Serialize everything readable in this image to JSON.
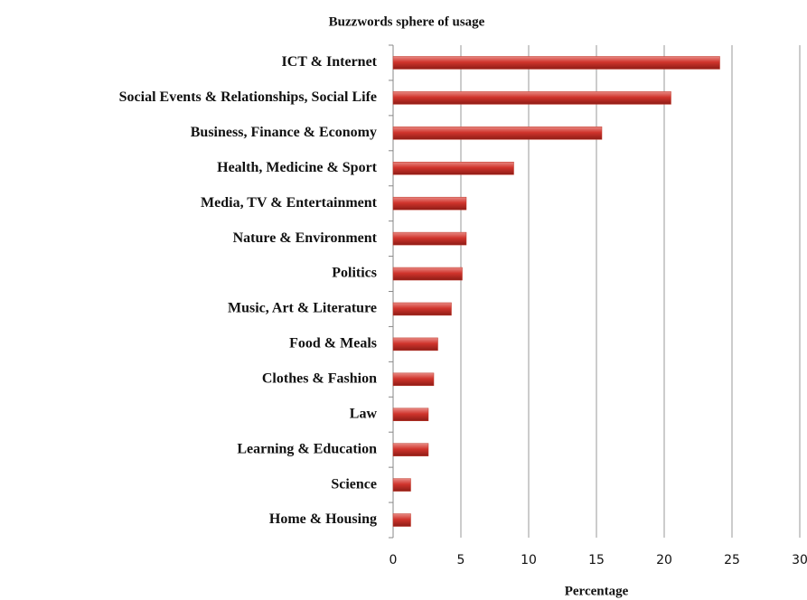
{
  "chart_data": {
    "type": "bar",
    "orientation": "horizontal",
    "title": "Buzzwords sphere of usage",
    "x_label": "Percentage",
    "categories": [
      "ICT & Internet",
      "Social Events & Relationships, Social Life",
      "Business, Finance & Economy",
      "Health, Medicine & Sport",
      "Media, TV & Entertainment",
      "Nature & Environment",
      "Politics",
      "Music, Art & Literature",
      "Food & Meals",
      "Clothes & Fashion",
      "Law",
      "Learning & Education",
      "Science",
      "Home & Housing"
    ],
    "values": [
      24.1,
      20.5,
      15.4,
      8.9,
      5.4,
      5.4,
      5.1,
      4.3,
      3.3,
      3.0,
      2.6,
      2.6,
      1.3,
      1.3
    ],
    "color": "#c0392b",
    "xlim": [
      0,
      30
    ],
    "xticks": [
      0,
      5,
      10,
      15,
      20,
      25,
      30
    ],
    "grid": true
  }
}
